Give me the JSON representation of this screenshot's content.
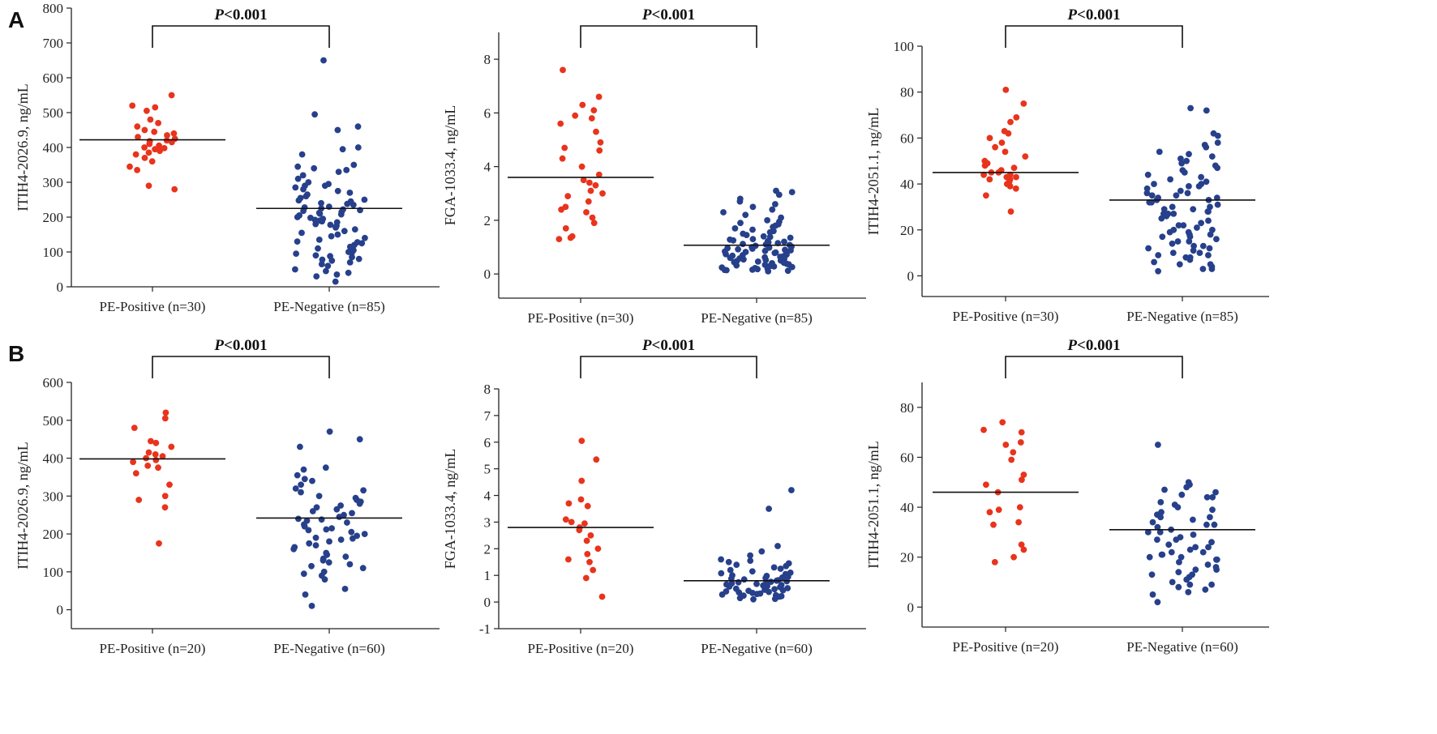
{
  "panels": [
    {
      "id": "A",
      "label": "A"
    },
    {
      "id": "B",
      "label": "B"
    }
  ],
  "colors": {
    "positive": "#e8341c",
    "negative": "#27408b",
    "axis": "#222222"
  },
  "chart_data": [
    {
      "type": "scatter",
      "panel": "A",
      "ylabel": "ITIH4-2026.9, ng/mL",
      "ylim": [
        0,
        800
      ],
      "yticks": [
        0,
        100,
        200,
        300,
        400,
        500,
        600,
        700,
        800
      ],
      "categories": [
        "PE-Positive (n=30)",
        "PE-Negative (n=85)"
      ],
      "significance": {
        "text": "P<0.001",
        "italic": "P",
        "rest": "<0.001"
      },
      "series": [
        {
          "name": "PE-Positive",
          "mean": 422,
          "values": [
            550,
            520,
            515,
            505,
            480,
            470,
            460,
            450,
            445,
            440,
            435,
            430,
            425,
            420,
            418,
            415,
            410,
            405,
            400,
            398,
            395,
            390,
            385,
            380,
            370,
            360,
            345,
            335,
            290,
            280
          ]
        },
        {
          "name": "PE-Negative",
          "mean": 225,
          "values": [
            650,
            495,
            460,
            450,
            400,
            395,
            380,
            350,
            345,
            340,
            335,
            330,
            320,
            310,
            300,
            295,
            290,
            290,
            285,
            280,
            275,
            270,
            265,
            260,
            255,
            250,
            248,
            245,
            240,
            238,
            235,
            230,
            228,
            225,
            222,
            220,
            218,
            215,
            212,
            210,
            208,
            205,
            200,
            198,
            195,
            192,
            190,
            188,
            185,
            180,
            178,
            175,
            170,
            165,
            160,
            155,
            150,
            145,
            140,
            135,
            130,
            128,
            125,
            120,
            115,
            110,
            105,
            100,
            98,
            95,
            90,
            88,
            85,
            80,
            78,
            75,
            70,
            65,
            60,
            50,
            45,
            40,
            35,
            30,
            15
          ]
        }
      ]
    },
    {
      "type": "scatter",
      "panel": "A",
      "ylabel": "FGA-1033.4, ng/mL",
      "ylim": [
        -0.9,
        9
      ],
      "yticks": [
        0,
        2,
        4,
        6,
        8
      ],
      "categories": [
        "PE-Positive (n=30)",
        "PE-Negative (n=85)"
      ],
      "significance": {
        "text": "P<0.001",
        "italic": "P",
        "rest": "<0.001"
      },
      "series": [
        {
          "name": "PE-Positive",
          "mean": 3.6,
          "values": [
            7.6,
            6.6,
            6.3,
            6.1,
            5.9,
            5.8,
            5.6,
            5.3,
            4.9,
            4.7,
            4.6,
            4.3,
            4.0,
            3.7,
            3.5,
            3.4,
            3.3,
            3.1,
            3.0,
            2.9,
            2.7,
            2.5,
            2.4,
            2.3,
            2.1,
            1.9,
            1.7,
            1.4,
            1.35,
            1.3
          ]
        },
        {
          "name": "PE-Negative",
          "mean": 1.07,
          "values": [
            3.1,
            3.05,
            2.95,
            2.8,
            2.7,
            2.6,
            2.5,
            2.4,
            2.3,
            2.2,
            2.1,
            2.0,
            1.95,
            1.9,
            1.85,
            1.8,
            1.75,
            1.7,
            1.65,
            1.6,
            1.55,
            1.5,
            1.45,
            1.4,
            1.38,
            1.35,
            1.3,
            1.28,
            1.25,
            1.22,
            1.2,
            1.18,
            1.15,
            1.12,
            1.1,
            1.08,
            1.05,
            1.02,
            1.0,
            0.98,
            0.96,
            0.94,
            0.92,
            0.9,
            0.88,
            0.86,
            0.84,
            0.82,
            0.8,
            0.78,
            0.76,
            0.74,
            0.72,
            0.7,
            0.68,
            0.66,
            0.64,
            0.62,
            0.6,
            0.58,
            0.56,
            0.54,
            0.52,
            0.5,
            0.48,
            0.46,
            0.44,
            0.42,
            0.4,
            0.38,
            0.36,
            0.34,
            0.32,
            0.3,
            0.28,
            0.26,
            0.24,
            0.22,
            0.2,
            0.18,
            0.16,
            0.15,
            0.14,
            0.12,
            0.1
          ]
        }
      ]
    },
    {
      "type": "scatter",
      "panel": "A",
      "ylabel": "ITIH4-2051.1, ng/mL",
      "ylim": [
        -9,
        100
      ],
      "yticks": [
        0,
        20,
        40,
        60,
        80,
        100
      ],
      "categories": [
        "PE-Positive (n=30)",
        "PE-Negative (n=85)"
      ],
      "significance": {
        "text": "P<0.001",
        "italic": "P",
        "rest": "<0.001"
      },
      "series": [
        {
          "name": "PE-Positive",
          "mean": 45,
          "values": [
            81,
            75,
            69,
            67,
            63,
            62,
            60,
            58,
            56,
            54,
            52,
            50,
            49,
            48,
            47,
            46,
            45,
            45,
            44,
            44,
            43,
            43,
            42,
            42,
            41,
            40,
            39,
            38,
            35,
            28
          ]
        },
        {
          "name": "PE-Negative",
          "mean": 33,
          "values": [
            73,
            72,
            62,
            61,
            58,
            57,
            56,
            54,
            53,
            52,
            51,
            50,
            49,
            48,
            47,
            46,
            45,
            44,
            43,
            42,
            41,
            40,
            40,
            39,
            39,
            38,
            37,
            36,
            35,
            35,
            34,
            34,
            33,
            33,
            32,
            32,
            31,
            30,
            30,
            29,
            29,
            28,
            28,
            27,
            27,
            26,
            25,
            24,
            23,
            22,
            21,
            20,
            20,
            19,
            19,
            18,
            18,
            17,
            16,
            15,
            15,
            14,
            13,
            12,
            12,
            11,
            10,
            10,
            9,
            8,
            8,
            7,
            6,
            5,
            5,
            4,
            3,
            3,
            2,
            36,
            27,
            22,
            17,
            13,
            9
          ]
        }
      ]
    },
    {
      "type": "scatter",
      "panel": "B",
      "ylabel": "ITIH4-2026.9, ng/mL",
      "ylim": [
        -50,
        600
      ],
      "yticks": [
        0,
        100,
        200,
        300,
        400,
        500,
        600
      ],
      "categories": [
        "PE-Positive (n=20)",
        "PE-Negative (n=60)"
      ],
      "significance": {
        "text": "P<0.001",
        "italic": "P",
        "rest": "<0.001"
      },
      "series": [
        {
          "name": "PE-Positive",
          "mean": 398,
          "values": [
            520,
            505,
            480,
            445,
            440,
            430,
            415,
            410,
            405,
            400,
            395,
            390,
            380,
            375,
            360,
            330,
            300,
            290,
            270,
            175
          ]
        },
        {
          "name": "PE-Negative",
          "mean": 242,
          "values": [
            470,
            450,
            430,
            375,
            370,
            355,
            345,
            340,
            330,
            320,
            315,
            310,
            300,
            295,
            290,
            285,
            280,
            275,
            270,
            265,
            260,
            255,
            250,
            245,
            240,
            238,
            235,
            230,
            225,
            220,
            215,
            212,
            210,
            205,
            200,
            195,
            190,
            188,
            185,
            180,
            175,
            170,
            165,
            160,
            150,
            145,
            140,
            135,
            130,
            125,
            120,
            115,
            110,
            100,
            95,
            90,
            80,
            55,
            40,
            10
          ]
        }
      ]
    },
    {
      "type": "scatter",
      "panel": "B",
      "ylabel": "FGA-1033.4, ng/mL",
      "ylim": [
        -1,
        8
      ],
      "yticks": [
        -1,
        0,
        1,
        2,
        3,
        4,
        5,
        6,
        7,
        8
      ],
      "categories": [
        "PE-Positive (n=20)",
        "PE-Negative (n=60)"
      ],
      "significance": {
        "text": "P<0.001",
        "italic": "P",
        "rest": "<0.001"
      },
      "series": [
        {
          "name": "PE-Positive",
          "mean": 2.8,
          "values": [
            6.05,
            5.35,
            4.55,
            3.85,
            3.7,
            3.6,
            3.1,
            3.0,
            2.95,
            2.8,
            2.7,
            2.5,
            2.3,
            2.0,
            1.8,
            1.6,
            1.5,
            1.2,
            0.9,
            0.2
          ]
        },
        {
          "name": "PE-Negative",
          "mean": 0.8,
          "values": [
            4.2,
            3.5,
            2.1,
            1.9,
            1.75,
            1.6,
            1.55,
            1.5,
            1.45,
            1.4,
            1.35,
            1.3,
            1.25,
            1.2,
            1.15,
            1.1,
            1.08,
            1.05,
            1.0,
            0.98,
            0.95,
            0.92,
            0.9,
            0.88,
            0.85,
            0.82,
            0.8,
            0.78,
            0.76,
            0.74,
            0.72,
            0.7,
            0.68,
            0.66,
            0.64,
            0.62,
            0.6,
            0.58,
            0.56,
            0.54,
            0.52,
            0.5,
            0.48,
            0.46,
            0.44,
            0.42,
            0.4,
            0.38,
            0.36,
            0.34,
            0.32,
            0.3,
            0.28,
            0.26,
            0.24,
            0.22,
            0.2,
            0.15,
            0.12,
            0.1
          ]
        }
      ]
    },
    {
      "type": "scatter",
      "panel": "B",
      "ylabel": "ITIH4-2051.1, ng/mL",
      "ylim": [
        -8,
        90
      ],
      "yticks": [
        0,
        20,
        40,
        60,
        80
      ],
      "categories": [
        "PE-Positive (n=20)",
        "PE-Negative (n=60)"
      ],
      "significance": {
        "text": "P<0.001",
        "italic": "P",
        "rest": "<0.001"
      },
      "series": [
        {
          "name": "PE-Positive",
          "mean": 46,
          "values": [
            74,
            71,
            70,
            66,
            65,
            62,
            59,
            53,
            51,
            49,
            46,
            40,
            39,
            38,
            34,
            33,
            25,
            23,
            20,
            18
          ]
        },
        {
          "name": "PE-Negative",
          "mean": 31,
          "values": [
            65,
            50,
            49,
            48,
            47,
            46,
            45,
            44,
            42,
            41,
            40,
            39,
            38,
            37,
            36,
            35,
            34,
            33,
            32,
            31,
            30,
            30,
            29,
            28,
            27,
            26,
            25,
            24,
            23,
            22,
            22,
            21,
            21,
            20,
            20,
            19,
            18,
            17,
            16,
            15,
            15,
            14,
            13,
            12,
            11,
            10,
            9,
            8,
            7,
            6,
            5,
            2,
            44,
            36,
            33,
            27,
            24,
            19,
            13,
            9
          ]
        }
      ]
    }
  ]
}
